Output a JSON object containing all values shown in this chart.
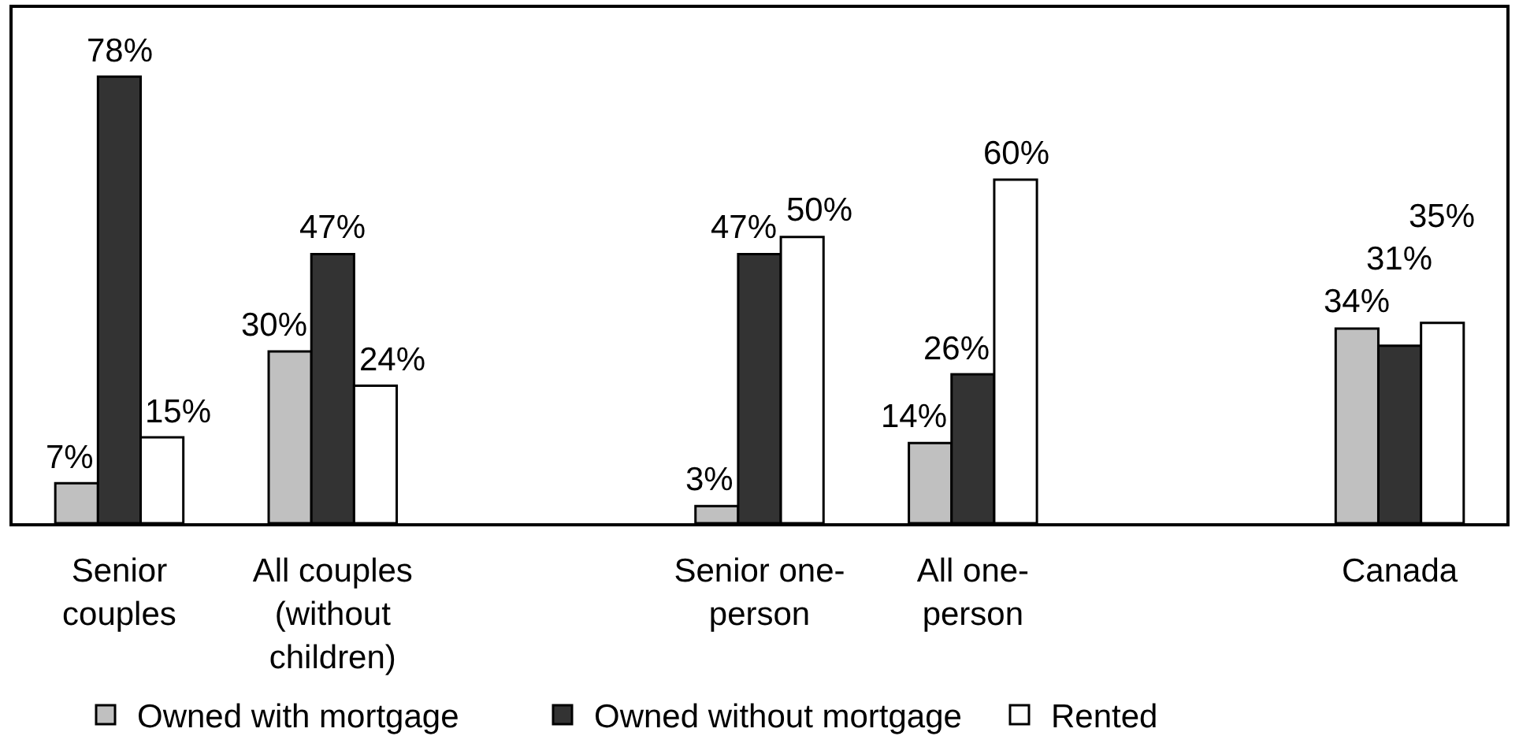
{
  "chart_data": {
    "type": "bar",
    "categories": [
      "Senior couples",
      "All couples (without children)",
      null,
      "Senior one-person",
      "All one-person",
      null,
      "Canada"
    ],
    "series": [
      {
        "name": "Owned with mortgage",
        "color": "#c0c0c0",
        "values": [
          7,
          30,
          null,
          3,
          14,
          null,
          34
        ],
        "value_labels": [
          "7%",
          "30%",
          null,
          "3%",
          "14%",
          null,
          "34%"
        ]
      },
      {
        "name": "Owned without mortgage",
        "color": "#333333",
        "values": [
          78,
          47,
          null,
          47,
          26,
          null,
          31
        ],
        "value_labels": [
          "78%",
          "47%",
          null,
          "47%",
          "26%",
          null,
          "31%"
        ]
      },
      {
        "name": "Rented",
        "color": "#ffffff",
        "values": [
          15,
          24,
          null,
          50,
          60,
          null,
          35
        ],
        "value_labels": [
          "15%",
          "24%",
          null,
          "50%",
          "60%",
          null,
          "35%"
        ]
      }
    ],
    "ylim": [
      0,
      90
    ],
    "tick_labels": "x",
    "legend": "bottom"
  }
}
